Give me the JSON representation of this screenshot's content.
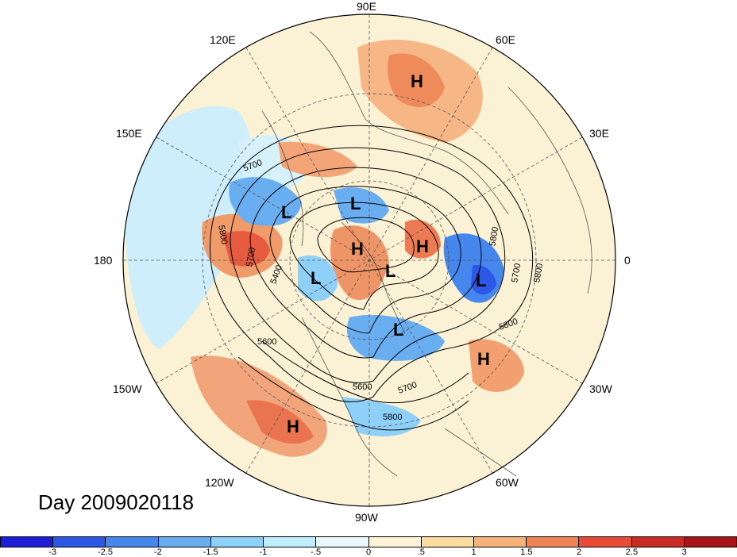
{
  "map": {
    "longitude_labels": [
      {
        "id": "lon-90e",
        "text": "90E"
      },
      {
        "id": "lon-60e",
        "text": "60E"
      },
      {
        "id": "lon-120e",
        "text": "120E"
      },
      {
        "id": "lon-30e",
        "text": "30E"
      },
      {
        "id": "lon-150e",
        "text": "150E"
      },
      {
        "id": "lon-0",
        "text": "0"
      },
      {
        "id": "lon-180",
        "text": "180"
      },
      {
        "id": "lon-30w",
        "text": "30W"
      },
      {
        "id": "lon-150w",
        "text": "150W"
      },
      {
        "id": "lon-60w",
        "text": "60W"
      },
      {
        "id": "lon-120w",
        "text": "120W"
      },
      {
        "id": "lon-90w",
        "text": "90W"
      }
    ],
    "pressure_centers": [
      "H",
      "L",
      "L",
      "L",
      "H",
      "H",
      "L",
      "L",
      "L",
      "H",
      "H"
    ],
    "contour_labels": [
      "5700",
      "5800",
      "5400",
      "5600",
      "5700",
      "5800",
      "5600",
      "5700",
      "5800",
      "5800",
      "5700",
      "5800"
    ],
    "day_label": "Day 2009020118"
  },
  "colorbar": {
    "colors": [
      "#1e1ed6",
      "#2d57e6",
      "#4687ee",
      "#6aaef2",
      "#8ed0f7",
      "#bfeefc",
      "#e8f8fb",
      "#fdf4d8",
      "#fbdca1",
      "#f7b27a",
      "#f08454",
      "#e84c38",
      "#cc2a24",
      "#a8141a"
    ],
    "ticks": [
      "-3",
      "-2.5",
      "-2",
      "-1.5",
      "-1",
      "-.5",
      "0",
      ".5",
      "1",
      "1.5",
      "2",
      "2.5",
      "3"
    ]
  }
}
